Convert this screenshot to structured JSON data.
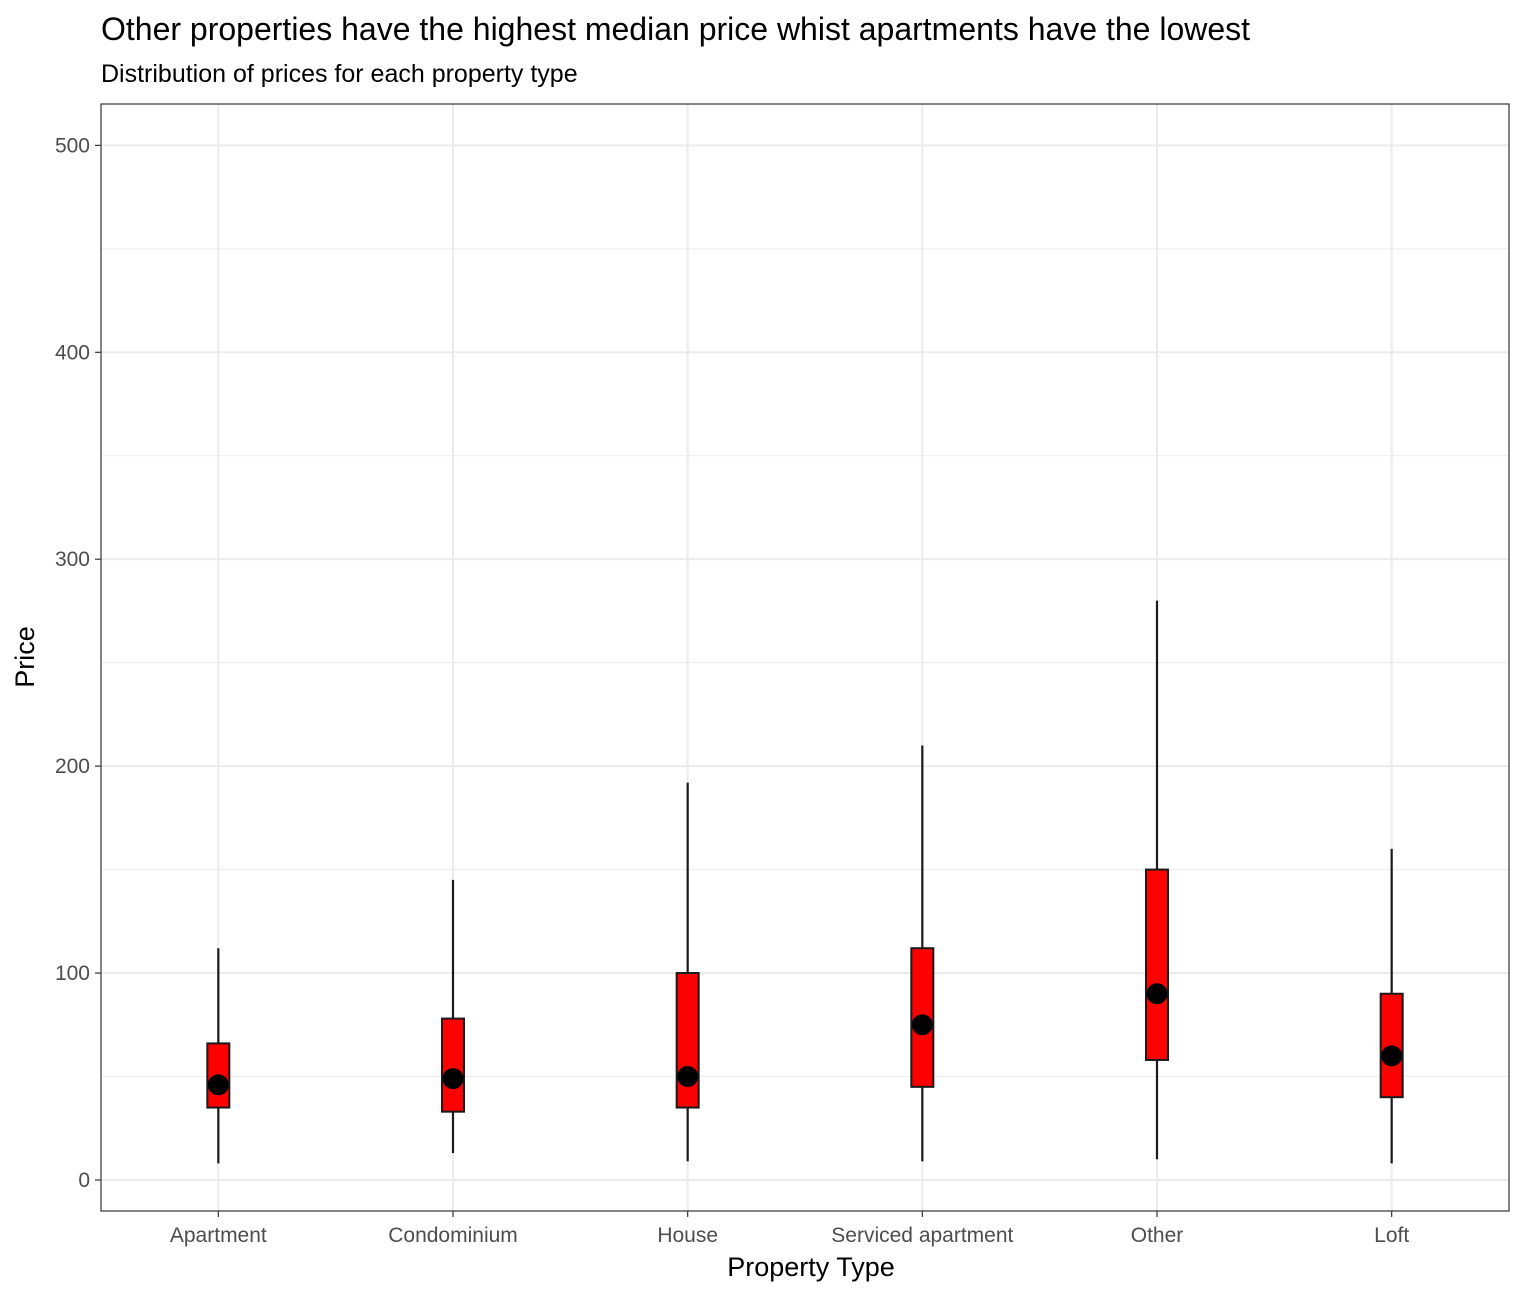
{
  "chart_data": {
    "type": "box",
    "title": "Other properties have the highest median price whist apartments have the lowest",
    "subtitle": "Distribution of prices for each property type",
    "xlabel": "Property Type",
    "ylabel": "Price",
    "ylim": [
      -15,
      520
    ],
    "yticks": [
      0,
      100,
      200,
      300,
      400,
      500
    ],
    "grid": true,
    "colors": {
      "box_fill": "#ff0000",
      "stroke": "#1a1a1a",
      "median_point": "#000000",
      "grid": "#ebebeb"
    },
    "categories": [
      "Apartment",
      "Condominium",
      "House",
      "Serviced apartment",
      "Other",
      "Loft"
    ],
    "boxes": [
      {
        "category": "Apartment",
        "whisker_low": 8,
        "q1": 35,
        "median": 46,
        "q3": 66,
        "whisker_high": 112
      },
      {
        "category": "Condominium",
        "whisker_low": 13,
        "q1": 33,
        "median": 49,
        "q3": 78,
        "whisker_high": 145
      },
      {
        "category": "House",
        "whisker_low": 9,
        "q1": 35,
        "median": 50,
        "q3": 100,
        "whisker_high": 192
      },
      {
        "category": "Serviced apartment",
        "whisker_low": 9,
        "q1": 45,
        "median": 75,
        "q3": 112,
        "whisker_high": 210
      },
      {
        "category": "Other",
        "whisker_low": 10,
        "q1": 58,
        "median": 90,
        "q3": 150,
        "whisker_high": 280
      },
      {
        "category": "Loft",
        "whisker_low": 8,
        "q1": 40,
        "median": 60,
        "q3": 90,
        "whisker_high": 160
      }
    ]
  }
}
